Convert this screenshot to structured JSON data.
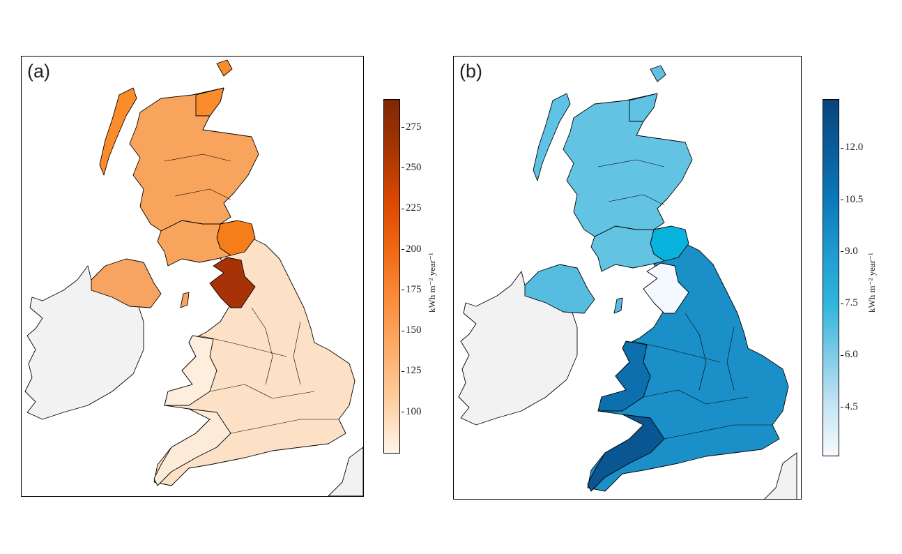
{
  "panels": [
    {
      "label": "(a)",
      "colorbar": {
        "label": "kWh m⁻² year⁻¹",
        "ticks": [
          "100",
          "125",
          "150",
          "175",
          "200",
          "225",
          "250",
          "275"
        ],
        "tick_values": [
          100,
          125,
          150,
          175,
          200,
          225,
          250,
          275
        ],
        "range": [
          75,
          292
        ],
        "colormap": "Oranges",
        "colors": [
          "#fff5eb",
          "#7f2704"
        ]
      }
    },
    {
      "label": "(b)",
      "colorbar": {
        "label": "kWh m⁻² year⁻¹",
        "ticks": [
          "4.5",
          "6.0",
          "7.5",
          "9.0",
          "10.5",
          "12.0"
        ],
        "tick_values": [
          4.5,
          6.0,
          7.5,
          9.0,
          10.5,
          12.0
        ],
        "range": [
          3.1,
          13.4
        ],
        "colormap": "Blues",
        "colors": [
          "#f7fbff",
          "#08457a"
        ]
      }
    }
  ]
}
